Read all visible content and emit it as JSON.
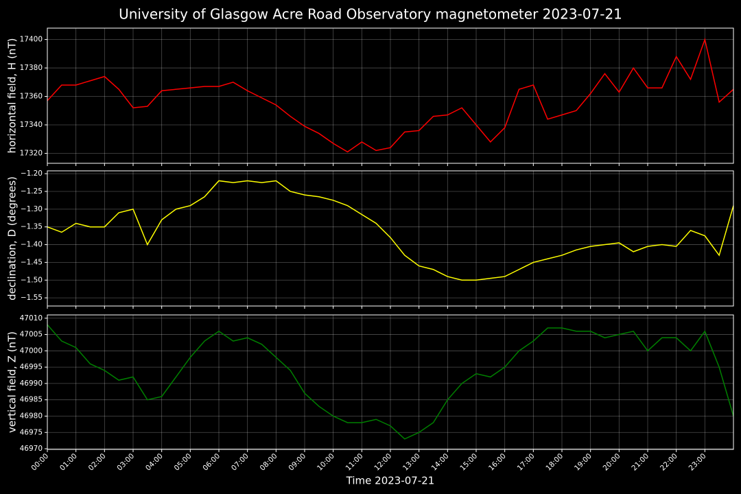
{
  "title": "University of Glasgow Acre Road Observatory magnetometer 2023-07-21",
  "chart_data": [
    {
      "type": "line",
      "ylabel": "horizontal field, H (nT)",
      "color": "#ff0000",
      "grid": true,
      "xlim": [
        0,
        24
      ],
      "ylim": [
        17313,
        17408
      ],
      "yticks": [
        17320,
        17340,
        17360,
        17380,
        17400
      ],
      "x": [
        0,
        0.5,
        1,
        1.5,
        2,
        2.5,
        3,
        3.5,
        4,
        4.5,
        5,
        5.5,
        6,
        6.5,
        7,
        7.5,
        8,
        8.5,
        9,
        9.5,
        10,
        10.5,
        11,
        11.5,
        12,
        12.5,
        13,
        13.5,
        14,
        14.5,
        15,
        15.5,
        16,
        16.5,
        17,
        17.5,
        18,
        18.5,
        19,
        19.5,
        20,
        20.5,
        21,
        21.5,
        22,
        22.5,
        23,
        23.5,
        24
      ],
      "values": [
        17357,
        17368,
        17368,
        17371,
        17374,
        17365,
        17352,
        17353,
        17364,
        17365,
        17366,
        17367,
        17367,
        17370,
        17364,
        17359,
        17354,
        17346,
        17339,
        17334,
        17327,
        17321,
        17328,
        17322,
        17324,
        17335,
        17336,
        17346,
        17347,
        17352,
        17340,
        17328,
        17338,
        17365,
        17368,
        17344,
        17347,
        17350,
        17362,
        17376,
        17363,
        17380,
        17366,
        17366,
        17388,
        17372,
        17400,
        17356,
        17365
      ]
    },
    {
      "type": "line",
      "ylabel": "declination, D (degrees)",
      "color": "#ffff00",
      "grid": true,
      "xlim": [
        0,
        24
      ],
      "ylim": [
        -1.573,
        -1.192
      ],
      "yticks": [
        {
          "value": -1.2,
          "label": "−1.20"
        },
        {
          "value": -1.25,
          "label": "−1.25"
        },
        {
          "value": -1.3,
          "label": "−1.30"
        },
        {
          "value": -1.35,
          "label": "−1.35"
        },
        {
          "value": -1.4,
          "label": "−1.40"
        },
        {
          "value": -1.45,
          "label": "−1.45"
        },
        {
          "value": -1.5,
          "label": "−1.50"
        },
        {
          "value": -1.55,
          "label": "−1.55"
        }
      ],
      "x": [
        0,
        0.5,
        1,
        1.5,
        2,
        2.5,
        3,
        3.5,
        4,
        4.5,
        5,
        5.5,
        6,
        6.5,
        7,
        7.5,
        8,
        8.5,
        9,
        9.5,
        10,
        10.5,
        11,
        11.5,
        12,
        12.5,
        13,
        13.5,
        14,
        14.5,
        15,
        15.5,
        16,
        16.5,
        17,
        17.5,
        18,
        18.5,
        19,
        19.5,
        20,
        20.5,
        21,
        21.5,
        22,
        22.5,
        23,
        23.5,
        24
      ],
      "values": [
        -1.35,
        -1.365,
        -1.34,
        -1.35,
        -1.35,
        -1.31,
        -1.3,
        -1.4,
        -1.33,
        -1.3,
        -1.29,
        -1.265,
        -1.22,
        -1.225,
        -1.22,
        -1.225,
        -1.22,
        -1.25,
        -1.26,
        -1.265,
        -1.275,
        -1.29,
        -1.315,
        -1.34,
        -1.38,
        -1.43,
        -1.46,
        -1.47,
        -1.49,
        -1.5,
        -1.5,
        -1.495,
        -1.49,
        -1.47,
        -1.45,
        -1.44,
        -1.43,
        -1.415,
        -1.405,
        -1.4,
        -1.395,
        -1.42,
        -1.405,
        -1.4,
        -1.405,
        -1.36,
        -1.375,
        -1.43,
        -1.29
      ]
    },
    {
      "type": "line",
      "ylabel": "vertical field, Z (nT)",
      "xlabel": "Time 2023-07-21",
      "color": "#008000",
      "grid": true,
      "xlim": [
        0,
        24
      ],
      "ylim": [
        46969.8,
        47011
      ],
      "yticks": [
        46970,
        46975,
        46980,
        46985,
        46990,
        46995,
        47000,
        47005,
        47010
      ],
      "xticks": [
        {
          "value": 0,
          "label": "00:00"
        },
        {
          "value": 1,
          "label": "01:00"
        },
        {
          "value": 2,
          "label": "02:00"
        },
        {
          "value": 3,
          "label": "03:00"
        },
        {
          "value": 4,
          "label": "04:00"
        },
        {
          "value": 5,
          "label": "05:00"
        },
        {
          "value": 6,
          "label": "06:00"
        },
        {
          "value": 7,
          "label": "07:00"
        },
        {
          "value": 8,
          "label": "08:00"
        },
        {
          "value": 9,
          "label": "09:00"
        },
        {
          "value": 10,
          "label": "10:00"
        },
        {
          "value": 11,
          "label": "11:00"
        },
        {
          "value": 12,
          "label": "12:00"
        },
        {
          "value": 13,
          "label": "13:00"
        },
        {
          "value": 14,
          "label": "14:00"
        },
        {
          "value": 15,
          "label": "15:00"
        },
        {
          "value": 16,
          "label": "16:00"
        },
        {
          "value": 17,
          "label": "17:00"
        },
        {
          "value": 18,
          "label": "18:00"
        },
        {
          "value": 19,
          "label": "19:00"
        },
        {
          "value": 20,
          "label": "20:00"
        },
        {
          "value": 21,
          "label": "21:00"
        },
        {
          "value": 22,
          "label": "22:00"
        },
        {
          "value": 23,
          "label": "23:00"
        }
      ],
      "x": [
        0,
        0.5,
        1,
        1.5,
        2,
        2.5,
        3,
        3.5,
        4,
        4.5,
        5,
        5.5,
        6,
        6.5,
        7,
        7.5,
        8,
        8.5,
        9,
        9.5,
        10,
        10.5,
        11,
        11.5,
        12,
        12.5,
        13,
        13.5,
        14,
        14.5,
        15,
        15.5,
        16,
        16.5,
        17,
        17.5,
        18,
        18.5,
        19,
        19.5,
        20,
        20.5,
        21,
        21.5,
        22,
        22.5,
        23,
        23.5,
        24
      ],
      "values": [
        47008,
        47003,
        47001,
        46996,
        46994,
        46991,
        46992,
        46985,
        46986,
        46992,
        46998,
        47003,
        47006,
        47003,
        47004,
        47002,
        46998,
        46994,
        46987,
        46983,
        46980,
        46978,
        46978,
        46979,
        46977,
        46973,
        46975,
        46978,
        46985,
        46990,
        46993,
        46992,
        46995,
        47000,
        47003,
        47007,
        47007,
        47006,
        47006,
        47004,
        47005,
        47006,
        47000,
        47004,
        47004,
        47000,
        47006,
        46995,
        46980
      ]
    }
  ]
}
